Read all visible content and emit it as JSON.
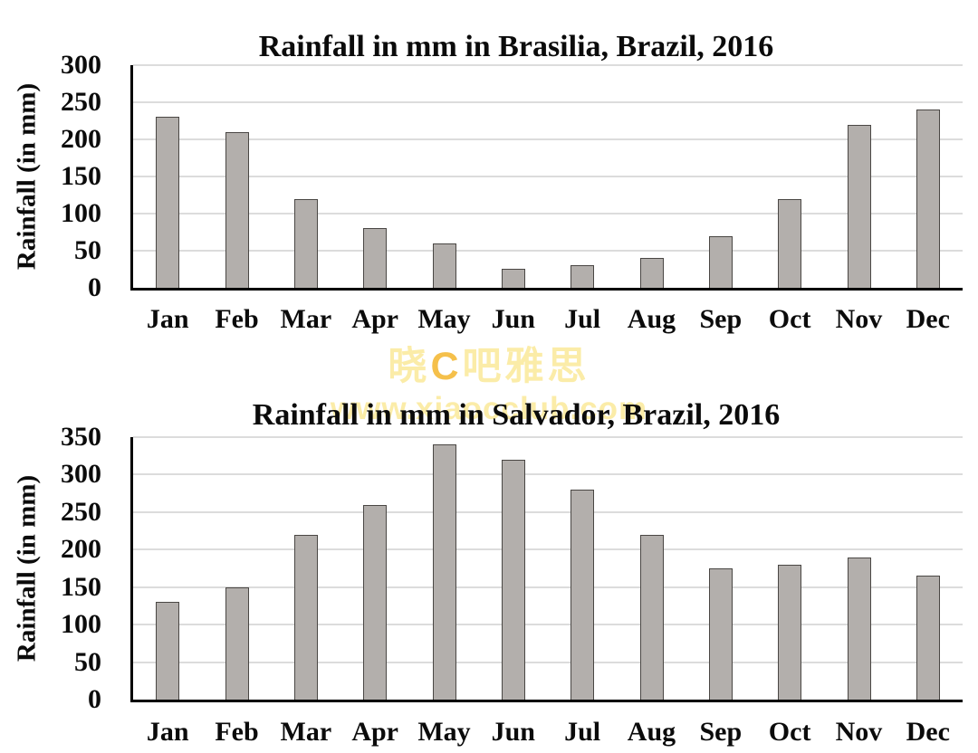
{
  "watermark": {
    "line1_parts": [
      {
        "text": "晓",
        "color": "#fbeca8"
      },
      {
        "text": "C",
        "color": "#f5c04b"
      },
      {
        "text": "吧雅思",
        "color": "#fbeca8"
      }
    ],
    "line2": "www.xiaocclub.com",
    "line2_color": "#fbeca8"
  },
  "colors": {
    "bar_fill": "#b3afac",
    "bar_border": "#4a4744",
    "gridline": "#dcdcdc",
    "axis": "#000000",
    "text": "#0b0b0b"
  },
  "chart_data": [
    {
      "type": "bar",
      "title": "Rainfall in mm in Brasilia, Brazil, 2016",
      "ylabel": "Rainfall (in mm)",
      "xlabel": "",
      "categories": [
        "Jan",
        "Feb",
        "Mar",
        "Apr",
        "May",
        "Jun",
        "Jul",
        "Aug",
        "Sep",
        "Oct",
        "Nov",
        "Dec"
      ],
      "values": [
        230,
        210,
        120,
        80,
        60,
        25,
        30,
        40,
        70,
        120,
        220,
        240
      ],
      "ylim": [
        0,
        300
      ],
      "ytick_step": 50,
      "ytick_labels": [
        "0",
        "50",
        "100",
        "150",
        "200",
        "250",
        "300"
      ],
      "grid": true,
      "legend": "none",
      "bar_color": "#b3afac"
    },
    {
      "type": "bar",
      "title": "Rainfall in mm in Salvador, Brazil, 2016",
      "ylabel": "Rainfall (in mm)",
      "xlabel": "",
      "categories": [
        "Jan",
        "Feb",
        "Mar",
        "Apr",
        "May",
        "Jun",
        "Jul",
        "Aug",
        "Sep",
        "Oct",
        "Nov",
        "Dec"
      ],
      "values": [
        130,
        150,
        220,
        260,
        340,
        320,
        280,
        220,
        175,
        180,
        190,
        165
      ],
      "ylim": [
        0,
        350
      ],
      "ytick_step": 50,
      "ytick_labels": [
        "0",
        "50",
        "100",
        "150",
        "200",
        "250",
        "300",
        "350"
      ],
      "grid": true,
      "legend": "none",
      "bar_color": "#b3afac"
    }
  ]
}
